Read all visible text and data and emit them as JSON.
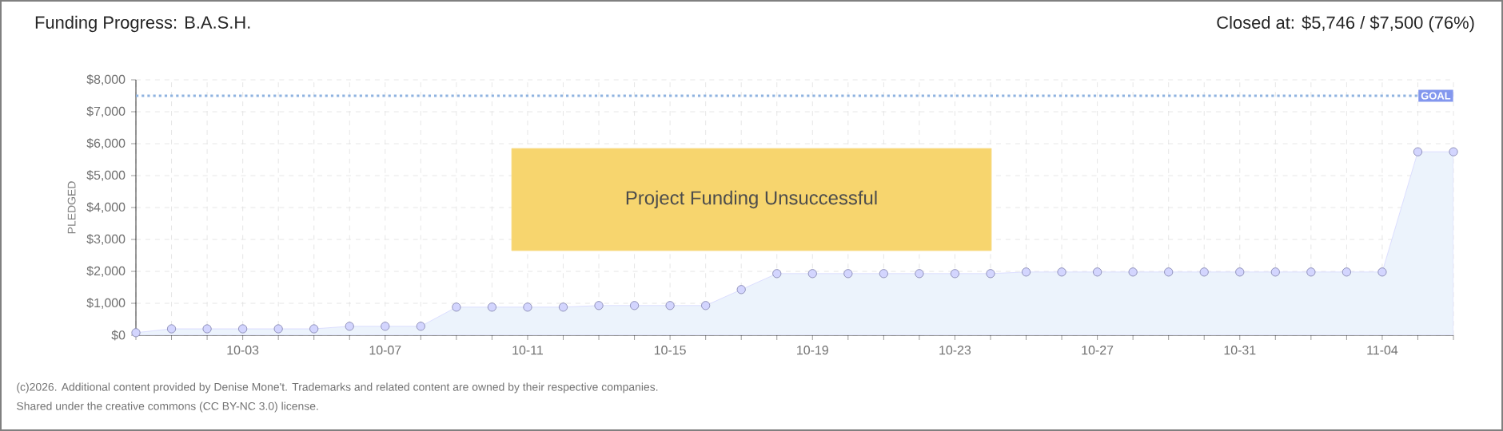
{
  "chart_data": {
    "type": "area",
    "title": "Funding Progress: B.A.S.H.",
    "subtitle": "Closed at: $5,746 / $7,500 (76%)",
    "ylabel": "PLEDGED",
    "categories": [
      null,
      null,
      null,
      "10-03",
      null,
      null,
      null,
      "10-07",
      null,
      null,
      null,
      "10-11",
      null,
      null,
      null,
      "10-15",
      null,
      null,
      null,
      "10-19",
      null,
      null,
      null,
      "10-23",
      null,
      null,
      null,
      "10-27",
      null,
      null,
      null,
      "10-31",
      null,
      null,
      null,
      "11-04",
      null,
      null
    ],
    "series": [
      {
        "color": "#ecf3fc",
        "values": [
          80,
          200,
          200,
          200,
          200,
          200,
          280,
          280,
          280,
          880,
          880,
          880,
          880,
          930,
          930,
          930,
          930,
          1430,
          1930,
          1930,
          1930,
          1930,
          1930,
          1930,
          1930,
          1980,
          1980,
          1980,
          1980,
          1980,
          1980,
          1980,
          1980,
          1980,
          1980,
          1980,
          5746,
          5746
        ]
      }
    ],
    "ylim": [
      0,
      8000
    ],
    "yticks": [
      {
        "value": 0,
        "label": "$0"
      },
      {
        "value": 1000,
        "label": "$1,000"
      },
      {
        "value": 2000,
        "label": "$2,000"
      },
      {
        "value": 3000,
        "label": "$3,000"
      },
      {
        "value": 4000,
        "label": "$4,000"
      },
      {
        "value": 5000,
        "label": "$5,000"
      },
      {
        "value": 6000,
        "label": "$6,000"
      },
      {
        "value": 7000,
        "label": "$7,000"
      },
      {
        "value": 8000,
        "label": "$8,000"
      }
    ],
    "ref_lines": [
      {
        "axis": "y",
        "value": 7500,
        "label": "GOAL",
        "color": "#8fb3e0",
        "line_style": "dotted"
      }
    ],
    "annotations": [
      "Project Funding Unsuccessful",
      "(c)2026. Additional content provided by Denise Mone't. Trademarks and related content are owned by their respective companies.",
      "Shared under the creative commons (CC BY-NC 3.0) license."
    ],
    "grid": true,
    "marker": "circle"
  }
}
